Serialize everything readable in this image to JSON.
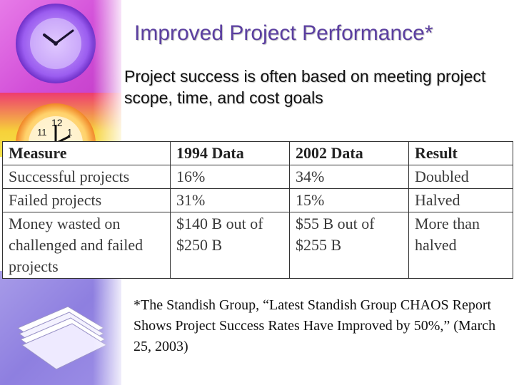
{
  "slide": {
    "title": "Improved Project Performance*",
    "subtitle": "Project success is often based on meeting project scope, time, and cost goals",
    "footnote": "*The Standish Group, “Latest Standish Group CHAOS Report Shows  Project Success Rates Have Improved by 50%,” (March 25, 2003)"
  },
  "table": {
    "headers": [
      "Measure",
      "1994 Data",
      "2002 Data",
      "Result"
    ],
    "rows": [
      [
        "Successful projects",
        "16%",
        "34%",
        "Doubled"
      ],
      [
        "Failed projects",
        "31%",
        "15%",
        "Halved"
      ],
      [
        "Money wasted on challenged and failed projects",
        "$140 B out of $250 B",
        "$55 B out of $255 B",
        "More than halved"
      ]
    ]
  },
  "decor": {
    "icons": [
      "clock-icon",
      "alarm-clock-icon",
      "paper-stack-icon"
    ],
    "colors": {
      "title": "#5b3fa0",
      "strip_top": "#d24fd8",
      "strip_mid": "#f6d13a",
      "strip_low": "#8e7fe0"
    }
  }
}
